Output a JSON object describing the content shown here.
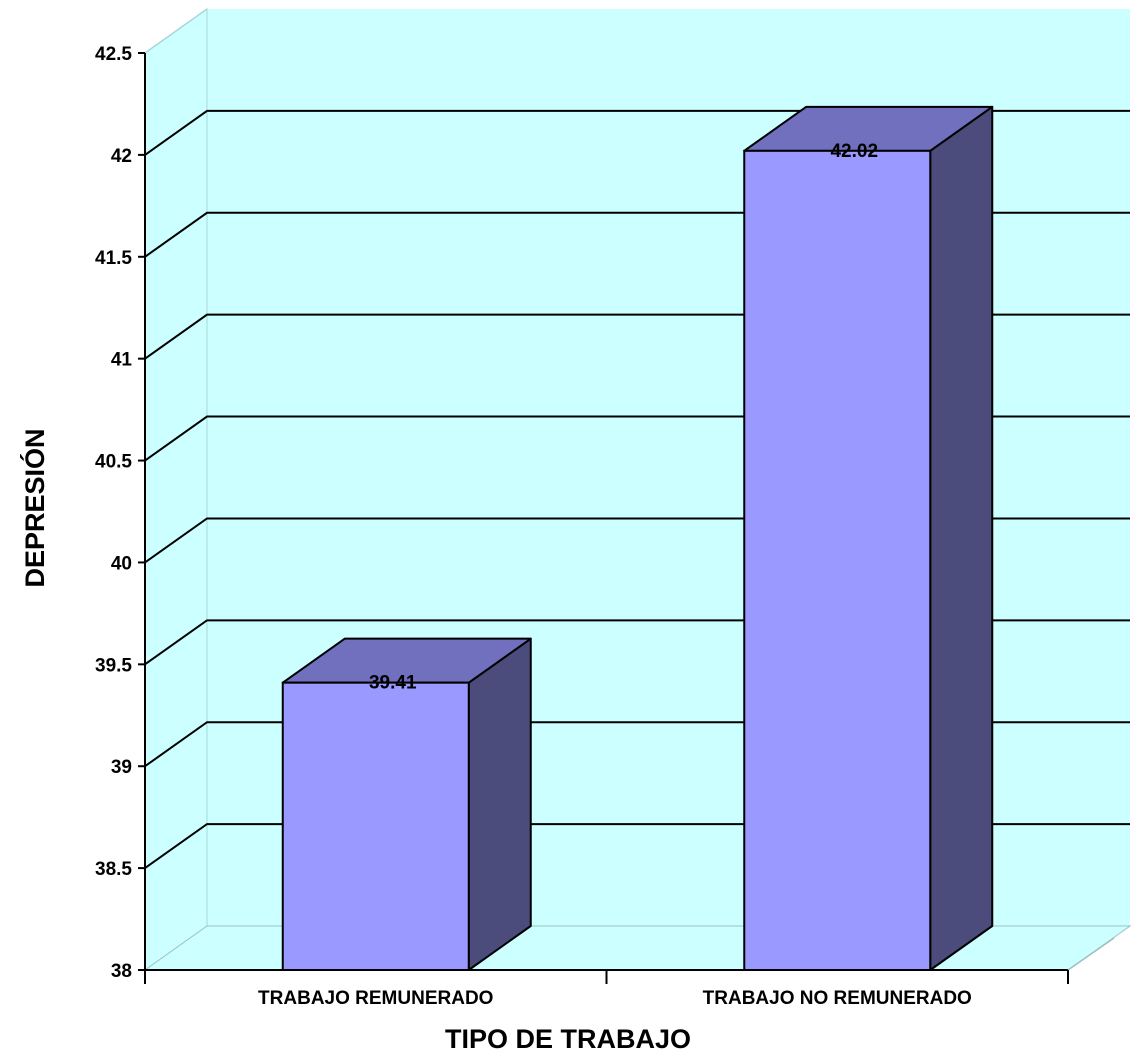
{
  "chart_data": {
    "type": "bar",
    "three_d": true,
    "categories": [
      "TRABAJO REMUNERADO",
      "TRABAJO NO REMUNERADO"
    ],
    "values": [
      39.41,
      42.02
    ],
    "data_labels": [
      "39.41",
      "42.02"
    ],
    "xlabel": "TIPO DE TRABAJO",
    "ylabel": "DEPRESIÓN",
    "ylim": [
      38,
      42.5
    ],
    "yticks": [
      38,
      38.5,
      39,
      39.5,
      40,
      40.5,
      41,
      41.5,
      42,
      42.5
    ],
    "ytick_labels": [
      "38",
      "38.5",
      "39",
      "39.5",
      "40",
      "40.5",
      "41",
      "41.5",
      "42",
      "42.5"
    ],
    "grid": true,
    "legend": "none"
  },
  "colors": {
    "wall": "#ccffff",
    "floor": "#ccffff",
    "bar_front": "#9999ff",
    "bar_top": "#7070bf",
    "bar_side": "#4b4b7c",
    "grid": "#000000"
  }
}
